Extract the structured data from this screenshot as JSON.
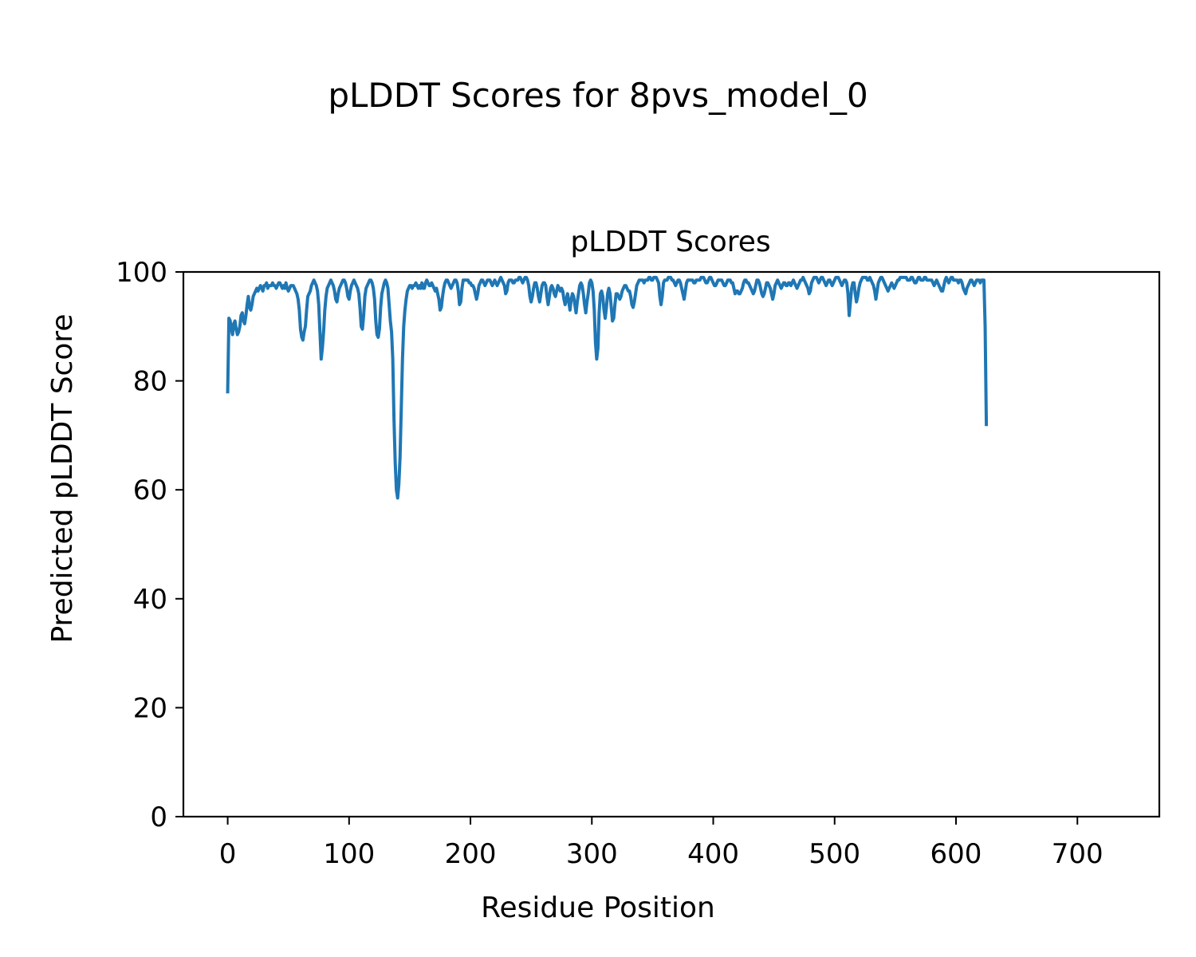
{
  "figure": {
    "suptitle": "pLDDT Scores for 8pvs_model_0"
  },
  "chart_data": {
    "type": "line",
    "title": "pLDDT Scores",
    "xlabel": "Residue Position",
    "ylabel": "Predicted pLDDT Score",
    "xlim": [
      -36.5,
      767.5
    ],
    "ylim": [
      0,
      100
    ],
    "xticks": [
      0,
      100,
      200,
      300,
      400,
      500,
      600,
      700
    ],
    "yticks": [
      0,
      20,
      40,
      60,
      80,
      100
    ],
    "grid": false,
    "legend": "none",
    "series_color": "#1f77b4",
    "series": [
      {
        "x_start": 0,
        "x_step": 1,
        "values": [
          78.0,
          91.5,
          91.1,
          89.5,
          88.5,
          90.5,
          91.0,
          89.5,
          88.5,
          89.0,
          90.0,
          92.0,
          92.5,
          91.0,
          90.5,
          92.0,
          94.0,
          95.5,
          93.5,
          93.0,
          94.0,
          95.5,
          96.0,
          96.5,
          97.0,
          96.5,
          97.0,
          97.5,
          97.0,
          96.5,
          97.5,
          97.5,
          98.0,
          97.0,
          97.5,
          97.5,
          97.5,
          98.0,
          97.5,
          97.5,
          97.0,
          97.5,
          98.0,
          98.0,
          97.5,
          97.0,
          97.5,
          97.0,
          98.0,
          97.0,
          96.5,
          97.0,
          97.5,
          97.5,
          97.5,
          97.0,
          96.5,
          96.0,
          95.0,
          93.0,
          89.5,
          88.0,
          87.5,
          89.0,
          90.0,
          93.0,
          95.5,
          96.0,
          96.5,
          97.5,
          98.0,
          98.5,
          98.0,
          97.5,
          96.5,
          94.0,
          89.0,
          84.0,
          86.0,
          89.0,
          93.0,
          95.5,
          97.0,
          97.5,
          98.0,
          98.5,
          98.0,
          97.5,
          96.5,
          95.0,
          94.5,
          96.0,
          97.0,
          97.5,
          98.0,
          98.5,
          98.5,
          98.0,
          97.0,
          95.5,
          95.0,
          96.5,
          97.5,
          98.0,
          98.5,
          98.0,
          97.5,
          97.0,
          96.0,
          93.5,
          90.0,
          89.5,
          92.0,
          95.5,
          97.0,
          97.5,
          98.0,
          98.5,
          98.5,
          98.0,
          97.0,
          95.0,
          91.0,
          88.5,
          88.0,
          89.5,
          93.5,
          96.0,
          97.0,
          98.0,
          98.5,
          98.0,
          97.0,
          94.0,
          91.0,
          89.0,
          84.0,
          73.0,
          65.0,
          60.0,
          58.5,
          61.0,
          66.0,
          75.0,
          84.0,
          90.0,
          93.0,
          95.0,
          96.5,
          97.0,
          97.5,
          97.5,
          97.0,
          97.5,
          97.5,
          98.0,
          97.5,
          97.0,
          97.5,
          97.0,
          98.0,
          97.0,
          97.0,
          98.0,
          98.5,
          98.0,
          97.5,
          97.5,
          98.0,
          97.5,
          97.0,
          96.5,
          97.0,
          96.0,
          95.0,
          93.0,
          93.5,
          95.5,
          97.0,
          98.0,
          98.5,
          98.5,
          98.0,
          97.5,
          97.0,
          97.5,
          98.0,
          98.5,
          98.5,
          98.0,
          96.5,
          94.0,
          94.5,
          97.0,
          98.5,
          98.5,
          98.5,
          98.5,
          98.5,
          98.0,
          98.0,
          97.5,
          97.5,
          97.0,
          96.0,
          95.0,
          96.0,
          97.5,
          98.0,
          98.5,
          98.5,
          98.0,
          97.5,
          98.0,
          98.5,
          98.5,
          98.5,
          98.0,
          97.5,
          98.0,
          98.5,
          98.0,
          97.5,
          98.0,
          98.5,
          99.0,
          98.5,
          98.0,
          97.5,
          96.0,
          96.5,
          98.0,
          98.5,
          98.5,
          98.5,
          98.0,
          98.0,
          98.5,
          98.5,
          98.5,
          99.0,
          99.0,
          98.5,
          98.0,
          98.5,
          99.0,
          99.0,
          98.5,
          97.5,
          95.5,
          94.5,
          95.5,
          97.0,
          98.0,
          98.0,
          97.0,
          95.5,
          94.5,
          96.0,
          97.5,
          98.0,
          98.0,
          97.5,
          95.5,
          94.0,
          95.5,
          97.0,
          97.5,
          97.0,
          96.0,
          95.5,
          96.5,
          97.5,
          97.0,
          96.5,
          97.0,
          96.5,
          95.0,
          94.0,
          95.0,
          96.0,
          94.5,
          93.0,
          95.0,
          96.0,
          95.5,
          94.0,
          92.5,
          94.5,
          96.0,
          97.5,
          98.0,
          97.5,
          96.0,
          94.0,
          92.5,
          94.5,
          96.0,
          98.0,
          98.5,
          98.0,
          96.5,
          93.0,
          87.0,
          84.0,
          86.0,
          92.5,
          96.0,
          96.5,
          95.5,
          93.0,
          91.5,
          93.5,
          96.0,
          97.0,
          96.0,
          93.5,
          91.0,
          91.5,
          94.0,
          96.0,
          96.0,
          95.5,
          95.0,
          95.5,
          96.5,
          97.0,
          97.5,
          97.5,
          97.0,
          96.5,
          96.5,
          95.5,
          94.0,
          93.5,
          94.5,
          96.0,
          97.5,
          98.0,
          98.5,
          98.5,
          98.5,
          98.5,
          98.0,
          98.5,
          98.5,
          98.5,
          99.0,
          99.0,
          98.5,
          98.5,
          99.0,
          99.0,
          99.0,
          98.5,
          98.0,
          95.5,
          94.0,
          95.5,
          98.0,
          98.5,
          98.5,
          98.5,
          99.0,
          99.0,
          99.0,
          98.5,
          98.5,
          98.0,
          97.5,
          98.0,
          98.5,
          98.5,
          98.0,
          97.0,
          96.0,
          95.0,
          96.5,
          98.0,
          98.5,
          98.5,
          98.5,
          98.5,
          98.5,
          98.0,
          98.0,
          98.5,
          98.5,
          98.5,
          98.5,
          99.0,
          99.0,
          99.0,
          98.5,
          98.0,
          98.0,
          98.5,
          99.0,
          99.0,
          98.5,
          98.0,
          97.5,
          97.5,
          98.0,
          98.5,
          98.5,
          98.5,
          98.5,
          98.0,
          97.5,
          97.5,
          98.0,
          98.5,
          98.5,
          98.5,
          98.0,
          98.0,
          97.0,
          96.0,
          96.5,
          96.5,
          96.0,
          96.0,
          96.5,
          97.0,
          98.0,
          98.5,
          98.5,
          98.0,
          98.0,
          97.5,
          97.0,
          96.5,
          96.0,
          96.5,
          97.5,
          98.5,
          98.5,
          98.0,
          97.0,
          96.0,
          95.5,
          96.0,
          97.0,
          98.0,
          98.0,
          97.5,
          97.0,
          96.0,
          95.0,
          96.0,
          97.5,
          98.0,
          98.5,
          98.0,
          97.5,
          97.0,
          97.5,
          98.0,
          98.0,
          97.5,
          97.5,
          98.0,
          98.0,
          97.5,
          98.0,
          98.5,
          98.0,
          97.5,
          97.0,
          97.5,
          98.0,
          98.5,
          98.5,
          99.0,
          98.5,
          98.0,
          97.5,
          97.0,
          96.0,
          96.5,
          98.0,
          98.5,
          99.0,
          99.0,
          99.0,
          98.5,
          98.0,
          98.5,
          99.0,
          99.0,
          98.5,
          98.0,
          97.5,
          98.0,
          98.5,
          98.5,
          98.0,
          97.5,
          98.0,
          98.5,
          99.0,
          99.0,
          99.0,
          98.5,
          98.0,
          97.5,
          98.0,
          98.5,
          98.5,
          98.0,
          96.0,
          92.0,
          94.5,
          97.0,
          98.0,
          98.0,
          96.0,
          94.5,
          95.5,
          97.0,
          98.0,
          98.5,
          99.0,
          99.0,
          99.0,
          99.0,
          98.5,
          98.5,
          99.0,
          98.5,
          98.0,
          97.5,
          96.5,
          95.0,
          96.5,
          98.0,
          98.5,
          99.0,
          99.0,
          98.5,
          98.0,
          97.5,
          97.0,
          96.5,
          97.0,
          97.5,
          98.0,
          97.5,
          97.0,
          97.5,
          98.0,
          98.5,
          98.5,
          99.0,
          99.0,
          99.0,
          99.0,
          99.0,
          99.0,
          98.5,
          98.5,
          98.5,
          99.0,
          99.0,
          98.5,
          98.0,
          98.0,
          98.5,
          99.0,
          99.0,
          98.5,
          98.5,
          98.5,
          99.0,
          99.0,
          98.5,
          98.5,
          98.5,
          98.5,
          98.5,
          98.0,
          97.5,
          98.0,
          98.5,
          98.0,
          97.5,
          97.0,
          96.5,
          96.5,
          97.5,
          98.5,
          99.0,
          98.5,
          98.0,
          98.5,
          99.0,
          99.0,
          98.5,
          98.5,
          98.5,
          98.5,
          98.0,
          98.5,
          98.5,
          98.0,
          97.0,
          96.5,
          96.0,
          97.0,
          97.5,
          98.0,
          98.5,
          98.5,
          98.0,
          97.5,
          98.0,
          98.5,
          98.5,
          98.5,
          98.0,
          98.5,
          98.5,
          98.5,
          90.0,
          72.0
        ]
      }
    ]
  }
}
